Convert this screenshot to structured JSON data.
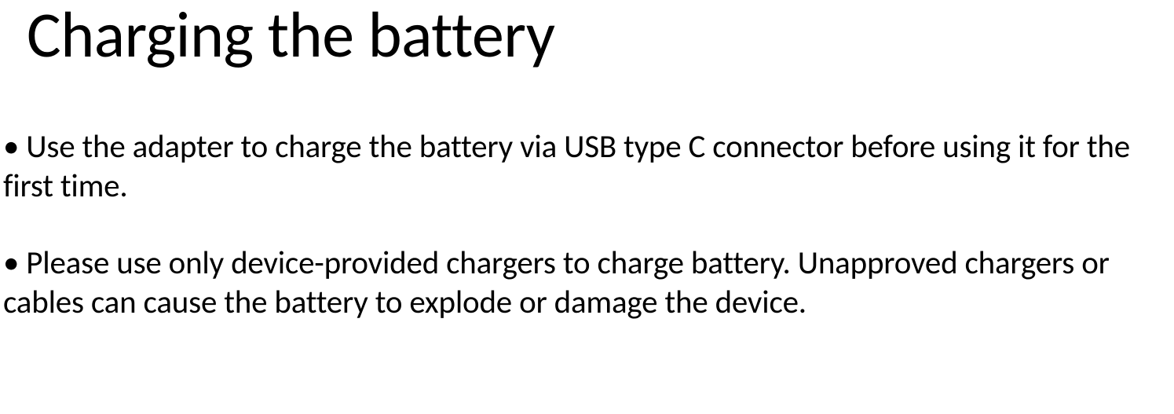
{
  "title": "Charging the battery",
  "bullets": [
    "• Use the adapter to charge the battery via USB type C connector before using it for the first time.",
    "• Please use only device-provided chargers to charge battery. Unapproved chargers or cables can cause the battery to explode or damage the device."
  ],
  "style": {
    "background_color": "#ffffff",
    "text_color": "#000000",
    "title_fontsize": 82,
    "body_fontsize": 41,
    "font_family": "Calibri"
  }
}
